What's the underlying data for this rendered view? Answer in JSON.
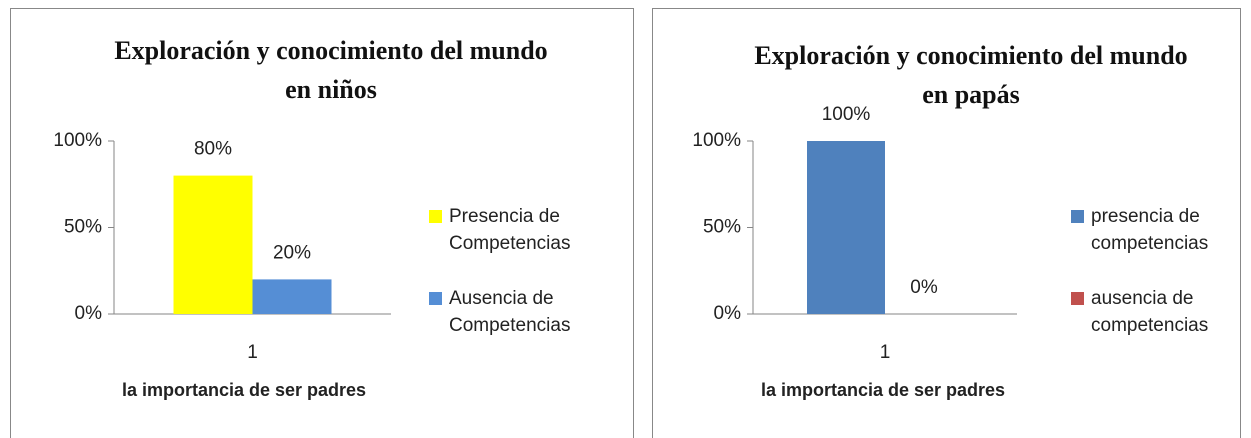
{
  "chart_data": [
    {
      "type": "bar",
      "title": "Exploración y conocimiento del mundo en niños",
      "categories": [
        "1"
      ],
      "xlabel": "la importancia de ser padres",
      "series": [
        {
          "name": "Presencia de Competencias",
          "color": "#ffff00",
          "values": [
            80
          ],
          "value_labels": [
            "80%"
          ]
        },
        {
          "name": "Ausencia de Competencias",
          "color": "#558ed5",
          "values": [
            20
          ],
          "value_labels": [
            "20%"
          ]
        }
      ],
      "ylim": [
        0,
        100
      ],
      "yticks": [
        {
          "value": 0,
          "label": "0%"
        },
        {
          "value": 50,
          "label": "50%"
        },
        {
          "value": 100,
          "label": "100%"
        }
      ],
      "grid": false,
      "legend": "right"
    },
    {
      "type": "bar",
      "title": "Exploración y conocimiento del mundo en papás",
      "categories": [
        "1"
      ],
      "xlabel": "la importancia de ser padres",
      "series": [
        {
          "name": "presencia de competencias",
          "color": "#4f81bd",
          "values": [
            100
          ],
          "value_labels": [
            "100%"
          ]
        },
        {
          "name": "ausencia de competencias",
          "color": "#c0504d",
          "values": [
            0
          ],
          "value_labels": [
            "0%"
          ]
        }
      ],
      "ylim": [
        0,
        100
      ],
      "yticks": [
        {
          "value": 0,
          "label": "0%"
        },
        {
          "value": 50,
          "label": "50%"
        },
        {
          "value": 100,
          "label": "100%"
        }
      ],
      "grid": false,
      "legend": "right"
    }
  ]
}
